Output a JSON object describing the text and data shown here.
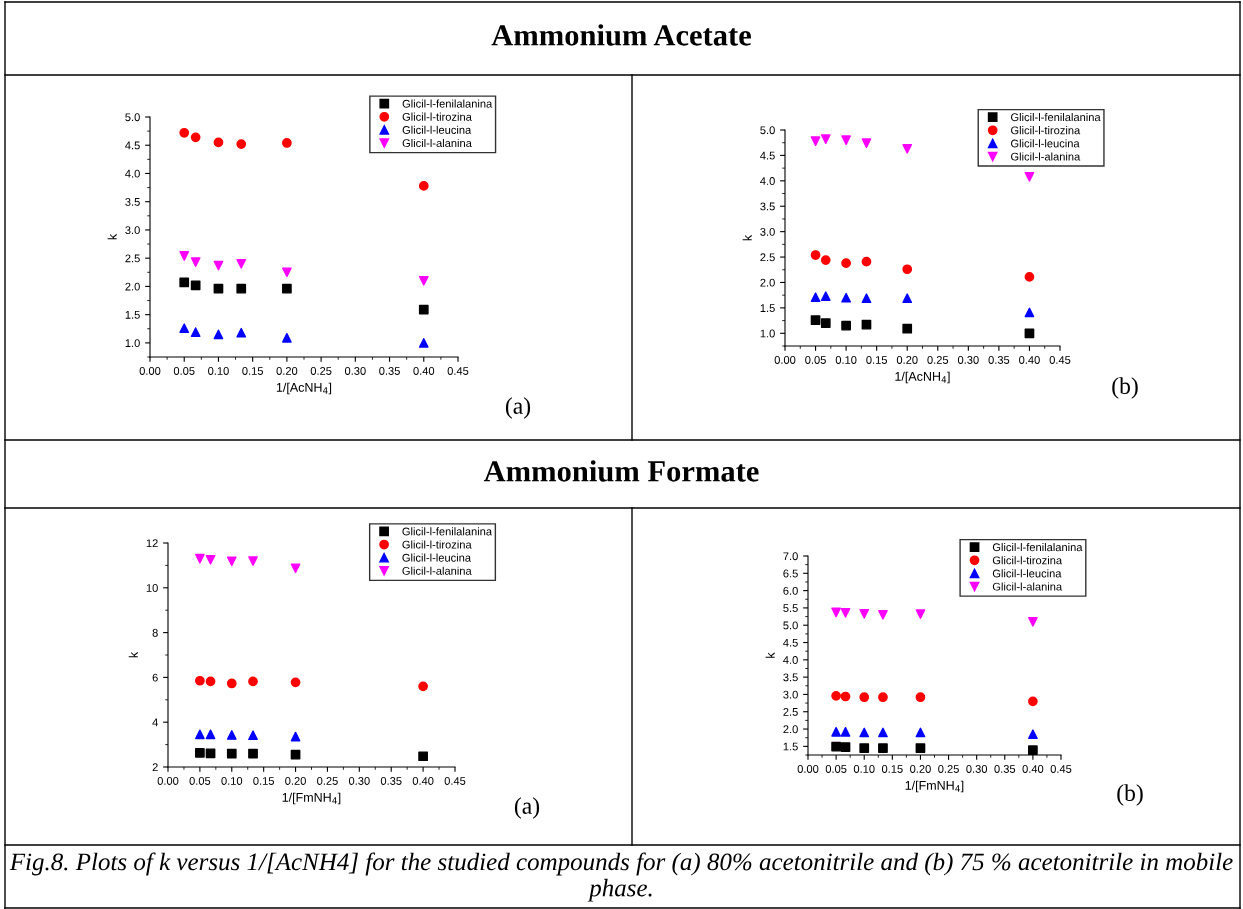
{
  "chart_data": [
    {
      "type": "scatter",
      "xlabel": "1/[AcNH$_{4}$]",
      "ylabel": "k",
      "annotations": [
        "(a)",
        "Ammonium Acetate"
      ],
      "x": [
        0.05,
        0.0667,
        0.1,
        0.1333,
        0.2,
        0.4
      ],
      "xlim": [
        0,
        0.45
      ],
      "xticks": [
        {
          "value": 0,
          "label": "0.00"
        },
        {
          "value": 0.05,
          "label": "0.05"
        },
        {
          "value": 0.1,
          "label": "0.10"
        },
        {
          "value": 0.15,
          "label": "0.15"
        },
        {
          "value": 0.2,
          "label": "0.20"
        },
        {
          "value": 0.25,
          "label": "0.25"
        },
        {
          "value": 0.3,
          "label": "0.30"
        },
        {
          "value": 0.35,
          "label": "0.35"
        },
        {
          "value": 0.4,
          "label": "0.40"
        },
        {
          "value": 0.45,
          "label": "0.45"
        }
      ],
      "ylim": [
        0.75,
        5.0
      ],
      "yticks": [
        {
          "value": 1,
          "label": "1.0"
        },
        {
          "value": 1.5,
          "label": "1.5"
        },
        {
          "value": 2,
          "label": "2.0"
        },
        {
          "value": 2.5,
          "label": "2.5"
        },
        {
          "value": 3,
          "label": "3.0"
        },
        {
          "value": 3.5,
          "label": "3.5"
        },
        {
          "value": 4,
          "label": "4.0"
        },
        {
          "value": 4.5,
          "label": "4.5"
        },
        {
          "value": 5,
          "label": "5.0"
        }
      ],
      "grid": false,
      "legend": "top right",
      "series": [
        {
          "name": "Glicil-l-fenilalanina",
          "color": "#000000",
          "marker": "square",
          "values": [
            2.07,
            2.02,
            1.96,
            1.96,
            1.96,
            1.59
          ]
        },
        {
          "name": "Glicil-l-tirozina",
          "color": "#ff0000",
          "marker": "circle",
          "values": [
            4.72,
            4.64,
            4.55,
            4.52,
            4.54,
            3.78
          ]
        },
        {
          "name": "Glicil-l-leucina",
          "color": "#0000ff",
          "marker": "triangle",
          "values": [
            1.26,
            1.19,
            1.15,
            1.18,
            1.09,
            1.0
          ]
        },
        {
          "name": "Glicil-l-alanina",
          "color": "#ff00ff",
          "marker": "triangle_down",
          "values": [
            2.54,
            2.43,
            2.37,
            2.4,
            2.25,
            2.1
          ]
        }
      ]
    },
    {
      "type": "scatter",
      "xlabel": "1/[AcNH$_{4}$]",
      "ylabel": "k",
      "annotations": [
        "(b)"
      ],
      "x": [
        0.05,
        0.0667,
        0.1,
        0.1333,
        0.2,
        0.4
      ],
      "xlim": [
        0,
        0.45
      ],
      "xticks": [
        {
          "value": 0,
          "label": "0.00"
        },
        {
          "value": 0.05,
          "label": "0.05"
        },
        {
          "value": 0.1,
          "label": "0.10"
        },
        {
          "value": 0.15,
          "label": "0.15"
        },
        {
          "value": 0.2,
          "label": "0.20"
        },
        {
          "value": 0.25,
          "label": "0.25"
        },
        {
          "value": 0.3,
          "label": "0.30"
        },
        {
          "value": 0.35,
          "label": "0.35"
        },
        {
          "value": 0.4,
          "label": "0.40"
        },
        {
          "value": 0.45,
          "label": "0.45"
        }
      ],
      "ylim": [
        0.75,
        5.0
      ],
      "yticks": [
        {
          "value": 1,
          "label": "1.0"
        },
        {
          "value": 1.5,
          "label": "1.5"
        },
        {
          "value": 2,
          "label": "2.0"
        },
        {
          "value": 2.5,
          "label": "2.5"
        },
        {
          "value": 3,
          "label": "3.0"
        },
        {
          "value": 3.5,
          "label": "3.5"
        },
        {
          "value": 4,
          "label": "4.0"
        },
        {
          "value": 4.5,
          "label": "4.5"
        },
        {
          "value": 5,
          "label": "5.0"
        }
      ],
      "grid": false,
      "legend": "top right",
      "series": [
        {
          "name": "Glicil-l-fenilalanina",
          "color": "#000000",
          "marker": "square",
          "values": [
            1.26,
            1.2,
            1.15,
            1.17,
            1.09,
            1.0
          ]
        },
        {
          "name": "Glicil-l-tirozina",
          "color": "#ff0000",
          "marker": "circle",
          "values": [
            2.54,
            2.44,
            2.38,
            2.41,
            2.26,
            2.11
          ]
        },
        {
          "name": "Glicil-l-leucina",
          "color": "#0000ff",
          "marker": "triangle",
          "values": [
            1.71,
            1.73,
            1.7,
            1.69,
            1.69,
            1.41
          ]
        },
        {
          "name": "Glicil-l-alanina",
          "color": "#ff00ff",
          "marker": "triangle_down",
          "values": [
            4.78,
            4.82,
            4.8,
            4.74,
            4.63,
            4.08
          ]
        }
      ]
    },
    {
      "type": "scatter",
      "xlabel": "1/[FmNH$_{4}$]",
      "ylabel": "k",
      "annotations": [
        "(a)",
        "Ammonium Formate"
      ],
      "x": [
        0.05,
        0.0667,
        0.1,
        0.1333,
        0.2,
        0.4
      ],
      "xlim": [
        0,
        0.45
      ],
      "xticks": [
        {
          "value": 0,
          "label": "0.00"
        },
        {
          "value": 0.05,
          "label": "0.05"
        },
        {
          "value": 0.1,
          "label": "0.10"
        },
        {
          "value": 0.15,
          "label": "0.15"
        },
        {
          "value": 0.2,
          "label": "0.20"
        },
        {
          "value": 0.25,
          "label": "0.25"
        },
        {
          "value": 0.3,
          "label": "0.30"
        },
        {
          "value": 0.35,
          "label": "0.35"
        },
        {
          "value": 0.4,
          "label": "0.40"
        },
        {
          "value": 0.45,
          "label": "0.45"
        }
      ],
      "ylim": [
        2,
        12
      ],
      "yticks": [
        2,
        4,
        6,
        8,
        10,
        12
      ],
      "grid": false,
      "legend": "top right",
      "series": [
        {
          "name": "Glicil-l-fenilalanina",
          "color": "#000000",
          "marker": "square",
          "values": [
            2.63,
            2.61,
            2.6,
            2.6,
            2.55,
            2.48
          ]
        },
        {
          "name": "Glicil-l-tirozina",
          "color": "#ff0000",
          "marker": "circle",
          "values": [
            5.85,
            5.82,
            5.73,
            5.82,
            5.78,
            5.6
          ]
        },
        {
          "name": "Glicil-l-leucina",
          "color": "#0000ff",
          "marker": "triangle",
          "values": [
            3.46,
            3.46,
            3.43,
            3.42,
            3.36,
            null
          ]
        },
        {
          "name": "Glicil-l-alanina",
          "color": "#ff00ff",
          "marker": "triangle_down",
          "values": [
            11.3,
            11.25,
            11.18,
            11.19,
            10.87,
            null
          ]
        }
      ]
    },
    {
      "type": "scatter",
      "xlabel": "1/[FmNH$_{4}$]",
      "ylabel": "k",
      "annotations": [
        "(b)",
        "Fig.8. Plots of k versus 1/[AcNH4] for the studied compounds for (a) 80% acetonitrile and (b) 75 % acetonitrile in mobile phase."
      ],
      "x": [
        0.05,
        0.0667,
        0.1,
        0.1333,
        0.2,
        0.4
      ],
      "xlim": [
        0,
        0.45
      ],
      "xticks": [
        {
          "value": 0,
          "label": "0.00"
        },
        {
          "value": 0.05,
          "label": "0.05"
        },
        {
          "value": 0.1,
          "label": "0.10"
        },
        {
          "value": 0.15,
          "label": "0.15"
        },
        {
          "value": 0.2,
          "label": "0.20"
        },
        {
          "value": 0.25,
          "label": "0.25"
        },
        {
          "value": 0.3,
          "label": "0.30"
        },
        {
          "value": 0.35,
          "label": "0.35"
        },
        {
          "value": 0.4,
          "label": "0.40"
        },
        {
          "value": 0.45,
          "label": "0.45"
        }
      ],
      "ylim": [
        1.25,
        7.0
      ],
      "yticks": [
        {
          "value": 1.5,
          "label": "1.5"
        },
        {
          "value": 2,
          "label": "2.0"
        },
        {
          "value": 2.5,
          "label": "2.5"
        },
        {
          "value": 3,
          "label": "3.0"
        },
        {
          "value": 3.5,
          "label": "3.5"
        },
        {
          "value": 4,
          "label": "4.0"
        },
        {
          "value": 4.5,
          "label": "4.5"
        },
        {
          "value": 5,
          "label": "5.0"
        },
        {
          "value": 5.5,
          "label": "5.5"
        },
        {
          "value": 6,
          "label": "6.0"
        },
        {
          "value": 6.5,
          "label": "6.5"
        },
        {
          "value": 7,
          "label": "7.0"
        }
      ],
      "grid": false,
      "legend": "top right",
      "series": [
        {
          "name": "Glicil-l-fenilalanina",
          "color": "#000000",
          "marker": "square",
          "values": [
            1.49,
            1.48,
            1.45,
            1.45,
            1.45,
            1.39
          ]
        },
        {
          "name": "Glicil-l-tirozina",
          "color": "#ff0000",
          "marker": "circle",
          "values": [
            2.96,
            2.94,
            2.92,
            2.92,
            2.92,
            2.8
          ]
        },
        {
          "name": "Glicil-l-leucina",
          "color": "#0000ff",
          "marker": "triangle",
          "values": [
            1.92,
            1.92,
            1.9,
            1.9,
            1.9,
            1.85
          ]
        },
        {
          "name": "Glicil-l-alanina",
          "color": "#ff00ff",
          "marker": "triangle_down",
          "values": [
            5.37,
            5.36,
            5.33,
            5.3,
            5.32,
            5.1
          ]
        }
      ]
    }
  ]
}
